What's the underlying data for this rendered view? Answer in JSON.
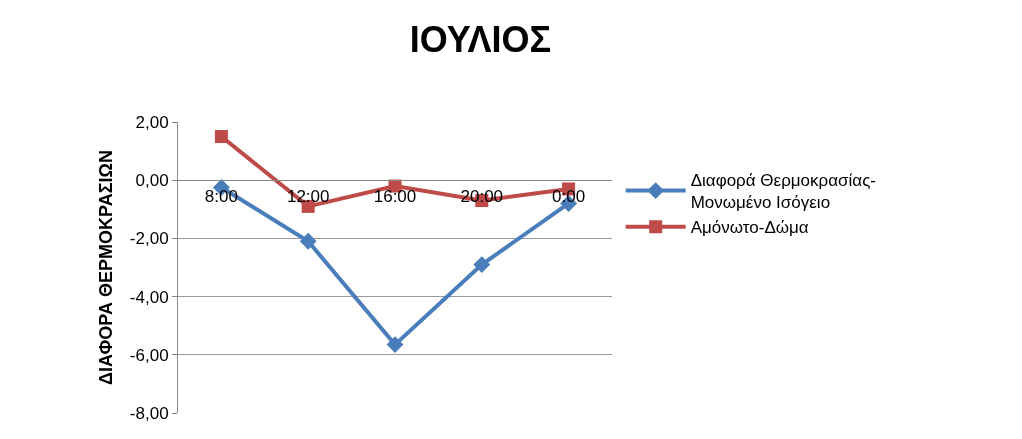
{
  "chart_data": {
    "type": "line",
    "title": "ΙΟΥΛΙΟΣ",
    "ylabel": "ΔΙΑΦΟΡΑ ΘΕΡΜΟΚΡΑΣΙΩΝ",
    "categories": [
      "8:00",
      "12:00",
      "16:00",
      "20:00",
      "0:00"
    ],
    "series": [
      {
        "name": "Διαφορά Θερμοκρασίας-Μονωμένο Ισόγειο",
        "color": "#4a7ebb",
        "marker": "diamond",
        "values": [
          -0.25,
          -2.1,
          -5.65,
          -2.9,
          -0.8
        ]
      },
      {
        "name": "Αμόνωτο-Δώμα",
        "color": "#be4b48",
        "marker": "square",
        "values": [
          1.5,
          -0.9,
          -0.2,
          -0.7,
          -0.3
        ]
      }
    ],
    "ylim": [
      -8,
      2
    ],
    "yticks": [
      {
        "value": -8,
        "label": "-8,00"
      },
      {
        "value": -6,
        "label": "-6,00"
      },
      {
        "value": -4,
        "label": "-4,00"
      },
      {
        "value": -2,
        "label": "-2,00"
      },
      {
        "value": 0,
        "label": "0,00"
      },
      {
        "value": 2,
        "label": "2,00"
      }
    ],
    "grid": "y",
    "legend": "right",
    "line_style": "solid"
  }
}
